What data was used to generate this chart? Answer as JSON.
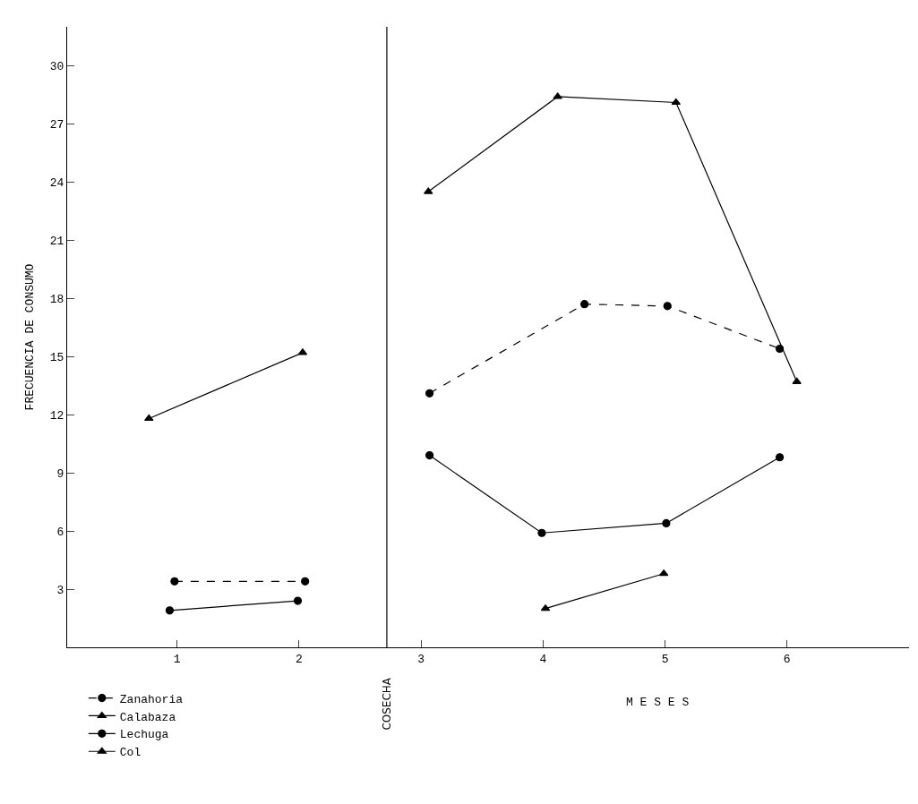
{
  "chart_data": {
    "type": "line",
    "xlabel": "M E S E S",
    "ylabel": "FRECUENCIA DE CONSUMO",
    "xlim": [
      0.1,
      7
    ],
    "xticks": [
      1,
      2,
      3,
      4,
      5,
      6
    ],
    "ylim": [
      0,
      32
    ],
    "yticks": [
      3,
      6,
      9,
      12,
      15,
      18,
      21,
      24,
      27,
      30
    ],
    "legend": "bottom left",
    "ref_lines": [
      {
        "axis": "x",
        "value": 2.72,
        "label": "COSECHA",
        "color": "#000000",
        "line_style": "solid"
      }
    ],
    "series": [
      {
        "name": "Zanahoria",
        "color": "#000000",
        "marker": "circle",
        "line_style": "dashed",
        "x": [
          0.98,
          2.05,
          null,
          3.07,
          4.34,
          5.02,
          5.94
        ],
        "values": [
          3.4,
          3.4,
          null,
          13.1,
          17.7,
          17.6,
          15.4
        ]
      },
      {
        "name": "Calabaza",
        "color": "#000000",
        "marker": "triangle",
        "line_style": "solid",
        "x": [
          0.77,
          2.03,
          null,
          3.06,
          4.12,
          5.09,
          6.08
        ],
        "values": [
          11.8,
          15.2,
          null,
          23.5,
          28.4,
          28.1,
          13.7
        ]
      },
      {
        "name": "Lechuga",
        "color": "#000000",
        "marker": "circle",
        "line_style": "solid",
        "x": [
          0.94,
          1.99,
          null,
          3.07,
          3.99,
          5.01,
          5.94
        ],
        "values": [
          1.9,
          2.4,
          null,
          9.9,
          5.9,
          6.4,
          9.8
        ]
      },
      {
        "name": "Col",
        "color": "#000000",
        "marker": "triangle",
        "line_style": "solid",
        "x": [
          4.02,
          4.99
        ],
        "values": [
          2.0,
          3.8
        ]
      }
    ]
  }
}
